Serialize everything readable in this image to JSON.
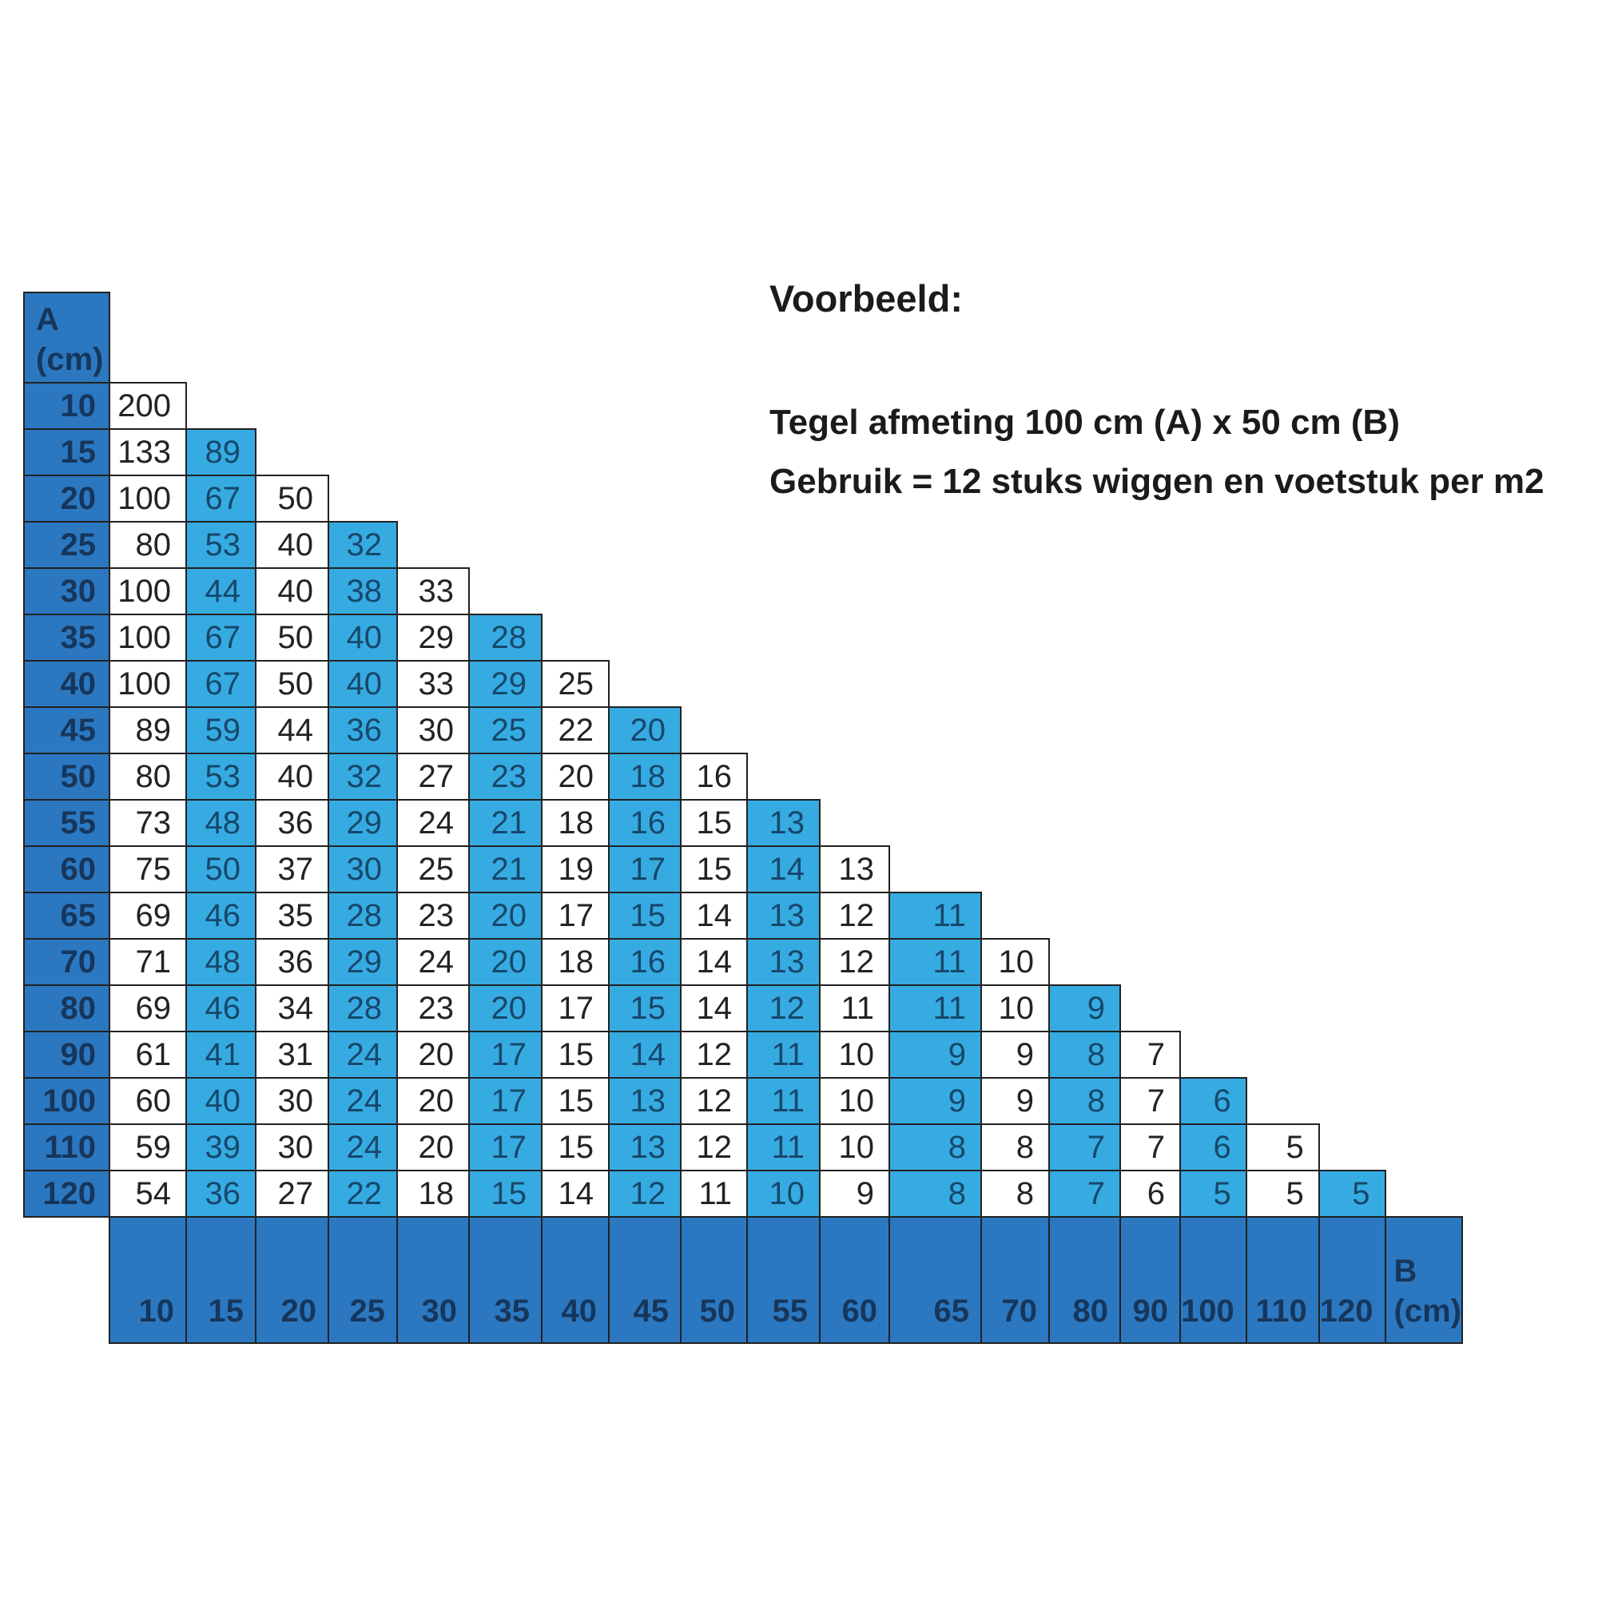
{
  "annotation": {
    "title": "Voorbeeld:",
    "line1": "Tegel afmeting 100 cm (A) x 50 cm (B)",
    "line2": "Gebruik = 12 stuks wiggen en voetstuk per m2"
  },
  "colors": {
    "blue": "#2c78c0",
    "cyan": "#36abe2",
    "navy": "#16365c",
    "cyanText": "#17476b",
    "valText": "#232323",
    "grid": "#212121"
  },
  "chart_data": {
    "type": "table",
    "x_axis_label_lines": [
      "B",
      "(cm)"
    ],
    "y_axis_label_lines": [
      "A",
      "(cm)"
    ],
    "columns": [
      10,
      15,
      20,
      25,
      30,
      35,
      40,
      45,
      50,
      55,
      60,
      65,
      70,
      80,
      90,
      100,
      110,
      120
    ],
    "rows": [
      10,
      15,
      20,
      25,
      30,
      35,
      40,
      45,
      50,
      55,
      60,
      65,
      70,
      80,
      90,
      100,
      110,
      120
    ],
    "values": [
      [
        200
      ],
      [
        133,
        89
      ],
      [
        100,
        67,
        50
      ],
      [
        80,
        53,
        40,
        32
      ],
      [
        100,
        44,
        40,
        38,
        33
      ],
      [
        100,
        67,
        50,
        40,
        29,
        28
      ],
      [
        100,
        67,
        50,
        40,
        33,
        29,
        25
      ],
      [
        89,
        59,
        44,
        36,
        30,
        25,
        22,
        20
      ],
      [
        80,
        53,
        40,
        32,
        27,
        23,
        20,
        18,
        16
      ],
      [
        73,
        48,
        36,
        29,
        24,
        21,
        18,
        16,
        15,
        13
      ],
      [
        75,
        50,
        37,
        30,
        25,
        21,
        19,
        17,
        15,
        14,
        13
      ],
      [
        69,
        46,
        35,
        28,
        23,
        20,
        17,
        15,
        14,
        13,
        12,
        11
      ],
      [
        71,
        48,
        36,
        29,
        24,
        20,
        18,
        16,
        14,
        13,
        12,
        11,
        10
      ],
      [
        69,
        46,
        34,
        28,
        23,
        20,
        17,
        15,
        14,
        12,
        11,
        11,
        10,
        9
      ],
      [
        61,
        41,
        31,
        24,
        20,
        17,
        15,
        14,
        12,
        11,
        10,
        9,
        9,
        8,
        7
      ],
      [
        60,
        40,
        30,
        24,
        20,
        17,
        15,
        13,
        12,
        11,
        10,
        9,
        9,
        8,
        7,
        6
      ],
      [
        59,
        39,
        30,
        24,
        20,
        17,
        15,
        13,
        12,
        11,
        10,
        8,
        8,
        7,
        7,
        6,
        5
      ],
      [
        54,
        36,
        27,
        22,
        18,
        15,
        14,
        12,
        11,
        10,
        9,
        8,
        8,
        7,
        6,
        5,
        5,
        5
      ]
    ]
  }
}
